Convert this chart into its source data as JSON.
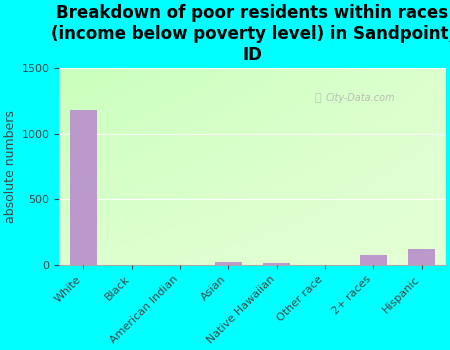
{
  "title": "Breakdown of poor residents within races\n(income below poverty level) in Sandpoint,\nID",
  "categories": [
    "White",
    "Black",
    "American Indian",
    "Asian",
    "Native Hawaiian",
    "Other race",
    "2+ races",
    "Hispanic"
  ],
  "values": [
    1180,
    0,
    0,
    20,
    15,
    0,
    75,
    125
  ],
  "bar_color": "#bb99cc",
  "ylabel": "absolute numbers",
  "ylim": [
    0,
    1500
  ],
  "yticks": [
    0,
    500,
    1000,
    1500
  ],
  "outer_bg": "#00ffff",
  "watermark": "City-Data.com",
  "title_fontsize": 12,
  "ylabel_fontsize": 9,
  "tick_fontsize": 8,
  "grid_color": "#ccddbb"
}
